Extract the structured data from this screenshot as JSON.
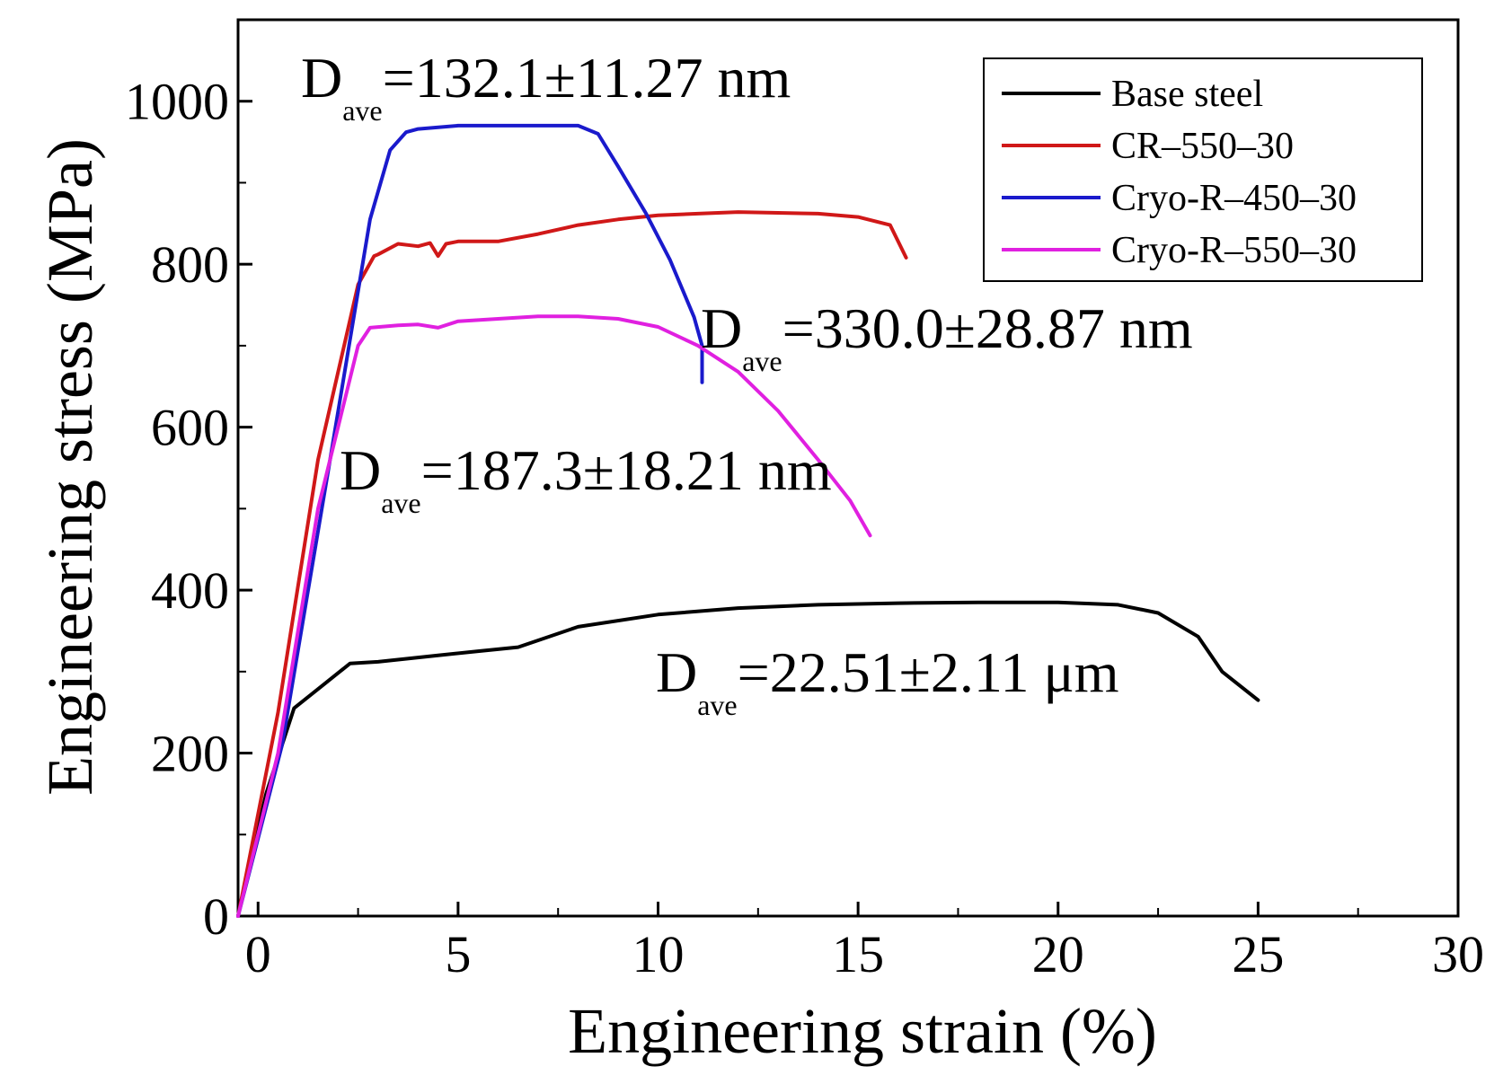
{
  "chart_data": {
    "type": "line",
    "xlabel": "Engineering strain (%)",
    "ylabel": "Engineering stress (MPa)",
    "xlim": [
      -0.5,
      30
    ],
    "ylim": [
      0,
      1100
    ],
    "xticks": [
      0,
      5,
      10,
      15,
      20,
      25,
      30
    ],
    "xtick_labels": [
      "0",
      "5",
      "10",
      "15",
      "20",
      "25",
      "30"
    ],
    "yticks": [
      0,
      200,
      400,
      600,
      800,
      1000
    ],
    "ytick_labels": [
      "0",
      "200",
      "400",
      "600",
      "800",
      "1000"
    ],
    "grid": false,
    "legend_position": "top-right",
    "series": [
      {
        "name": "Base steel",
        "color": "#000000",
        "x": [
          -0.5,
          0.2,
          0.9,
          2.3,
          3.0,
          4.5,
          5.5,
          6.5,
          8.0,
          10.0,
          12.0,
          14.0,
          16.0,
          18.0,
          20.0,
          21.5,
          22.5,
          23.5,
          24.1,
          25.0
        ],
        "y": [
          0,
          150,
          255,
          310,
          312,
          320,
          325,
          330,
          355,
          370,
          378,
          382,
          384,
          385,
          385,
          382,
          372,
          343,
          300,
          265
        ]
      },
      {
        "name": "CR–550–30",
        "color": "#d01818",
        "x": [
          -0.5,
          0.5,
          1.5,
          2.5,
          2.9,
          3.0,
          3.5,
          4.0,
          4.3,
          4.5,
          4.7,
          5.0,
          6.0,
          7.0,
          8.0,
          9.0,
          10.0,
          11.0,
          12.0,
          13.0,
          14.0,
          15.0,
          15.8,
          16.2
        ],
        "y": [
          0,
          250,
          560,
          775,
          810,
          812,
          825,
          822,
          826,
          810,
          825,
          828,
          828,
          837,
          848,
          855,
          860,
          862,
          864,
          863,
          862,
          858,
          848,
          808
        ]
      },
      {
        "name": "Cryo-R–450–30",
        "color": "#1a1acc",
        "x": [
          -0.5,
          0.6,
          1.8,
          2.8,
          3.3,
          3.7,
          4.0,
          5.0,
          6.0,
          7.0,
          8.0,
          8.5,
          9.0,
          9.7,
          10.3,
          10.9,
          11.1,
          11.1
        ],
        "y": [
          0,
          210,
          560,
          855,
          940,
          962,
          966,
          970,
          970,
          970,
          970,
          960,
          920,
          862,
          805,
          735,
          700,
          655
        ]
      },
      {
        "name": "Cryo-R–550–30",
        "color": "#e020e0",
        "x": [
          -0.5,
          0.5,
          1.5,
          2.5,
          2.8,
          3.5,
          4.0,
          4.5,
          5.0,
          6.0,
          7.0,
          8.0,
          9.0,
          10.0,
          11.0,
          12.0,
          13.0,
          14.0,
          14.8,
          15.3
        ],
        "y": [
          0,
          200,
          500,
          700,
          722,
          725,
          726,
          722,
          730,
          733,
          736,
          736,
          733,
          723,
          700,
          668,
          620,
          560,
          510,
          467
        ]
      }
    ],
    "annotations": [
      {
        "main": "D",
        "sub": "ave",
        "value": "=132.1±11.27 nm"
      },
      {
        "main": "D",
        "sub": "ave",
        "value": "=330.0±28.87 nm"
      },
      {
        "main": "D",
        "sub": "ave",
        "value": "=187.3±18.21 nm"
      },
      {
        "main": "D",
        "sub": "ave",
        "value": "=22.51±2.11 μm"
      }
    ]
  }
}
